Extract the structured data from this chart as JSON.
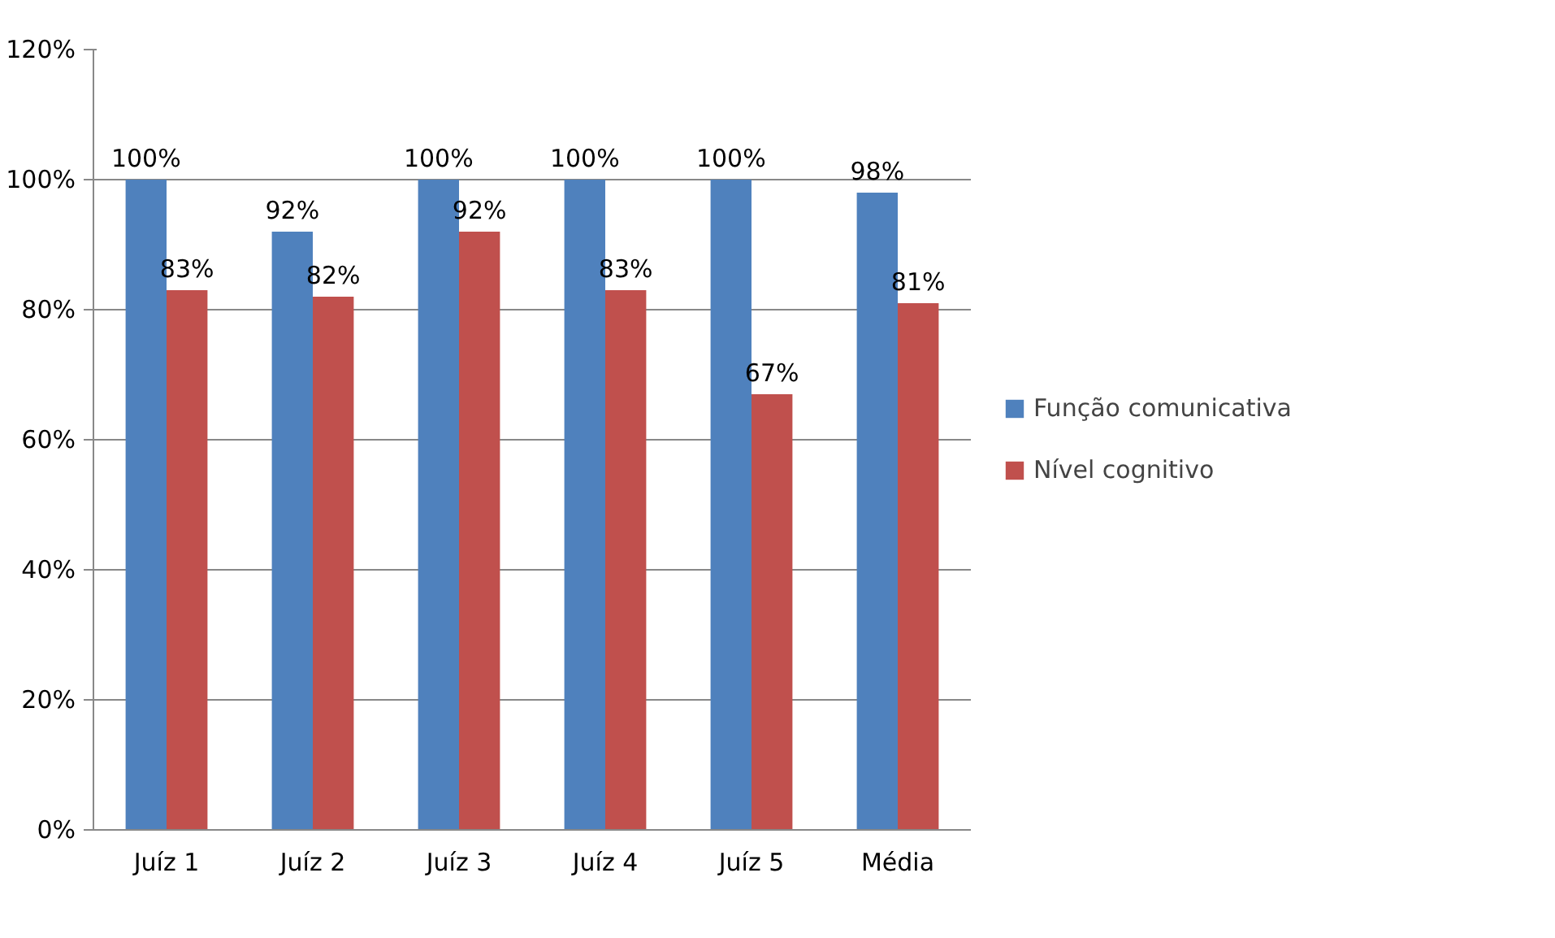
{
  "chart_data": {
    "type": "bar",
    "categories": [
      "Juíz 1",
      "Juíz 2",
      "Juíz 3",
      "Juíz 4",
      "Juíz 5",
      "Média"
    ],
    "series": [
      {
        "name": "Função comunicativa",
        "color": "#4f81bd",
        "values": [
          100,
          92,
          100,
          100,
          100,
          98
        ],
        "value_labels": [
          "100%",
          "92%",
          "100%",
          "100%",
          "100%",
          "98%"
        ]
      },
      {
        "name": "Nível cognitivo",
        "color": "#c0504d",
        "values": [
          83,
          82,
          92,
          83,
          67,
          81
        ],
        "value_labels": [
          "83%",
          "82%",
          "92%",
          "83%",
          "67%",
          "81%"
        ]
      }
    ],
    "ylim": [
      0,
      120
    ],
    "yticks": [
      {
        "value": 0,
        "label": "0%"
      },
      {
        "value": 20,
        "label": "20%"
      },
      {
        "value": 40,
        "label": "40%"
      },
      {
        "value": 60,
        "label": "60%"
      },
      {
        "value": 80,
        "label": "80%"
      },
      {
        "value": 100,
        "label": "100%"
      },
      {
        "value": 120,
        "label": "120%"
      }
    ],
    "grid": "y",
    "legend": "right"
  }
}
